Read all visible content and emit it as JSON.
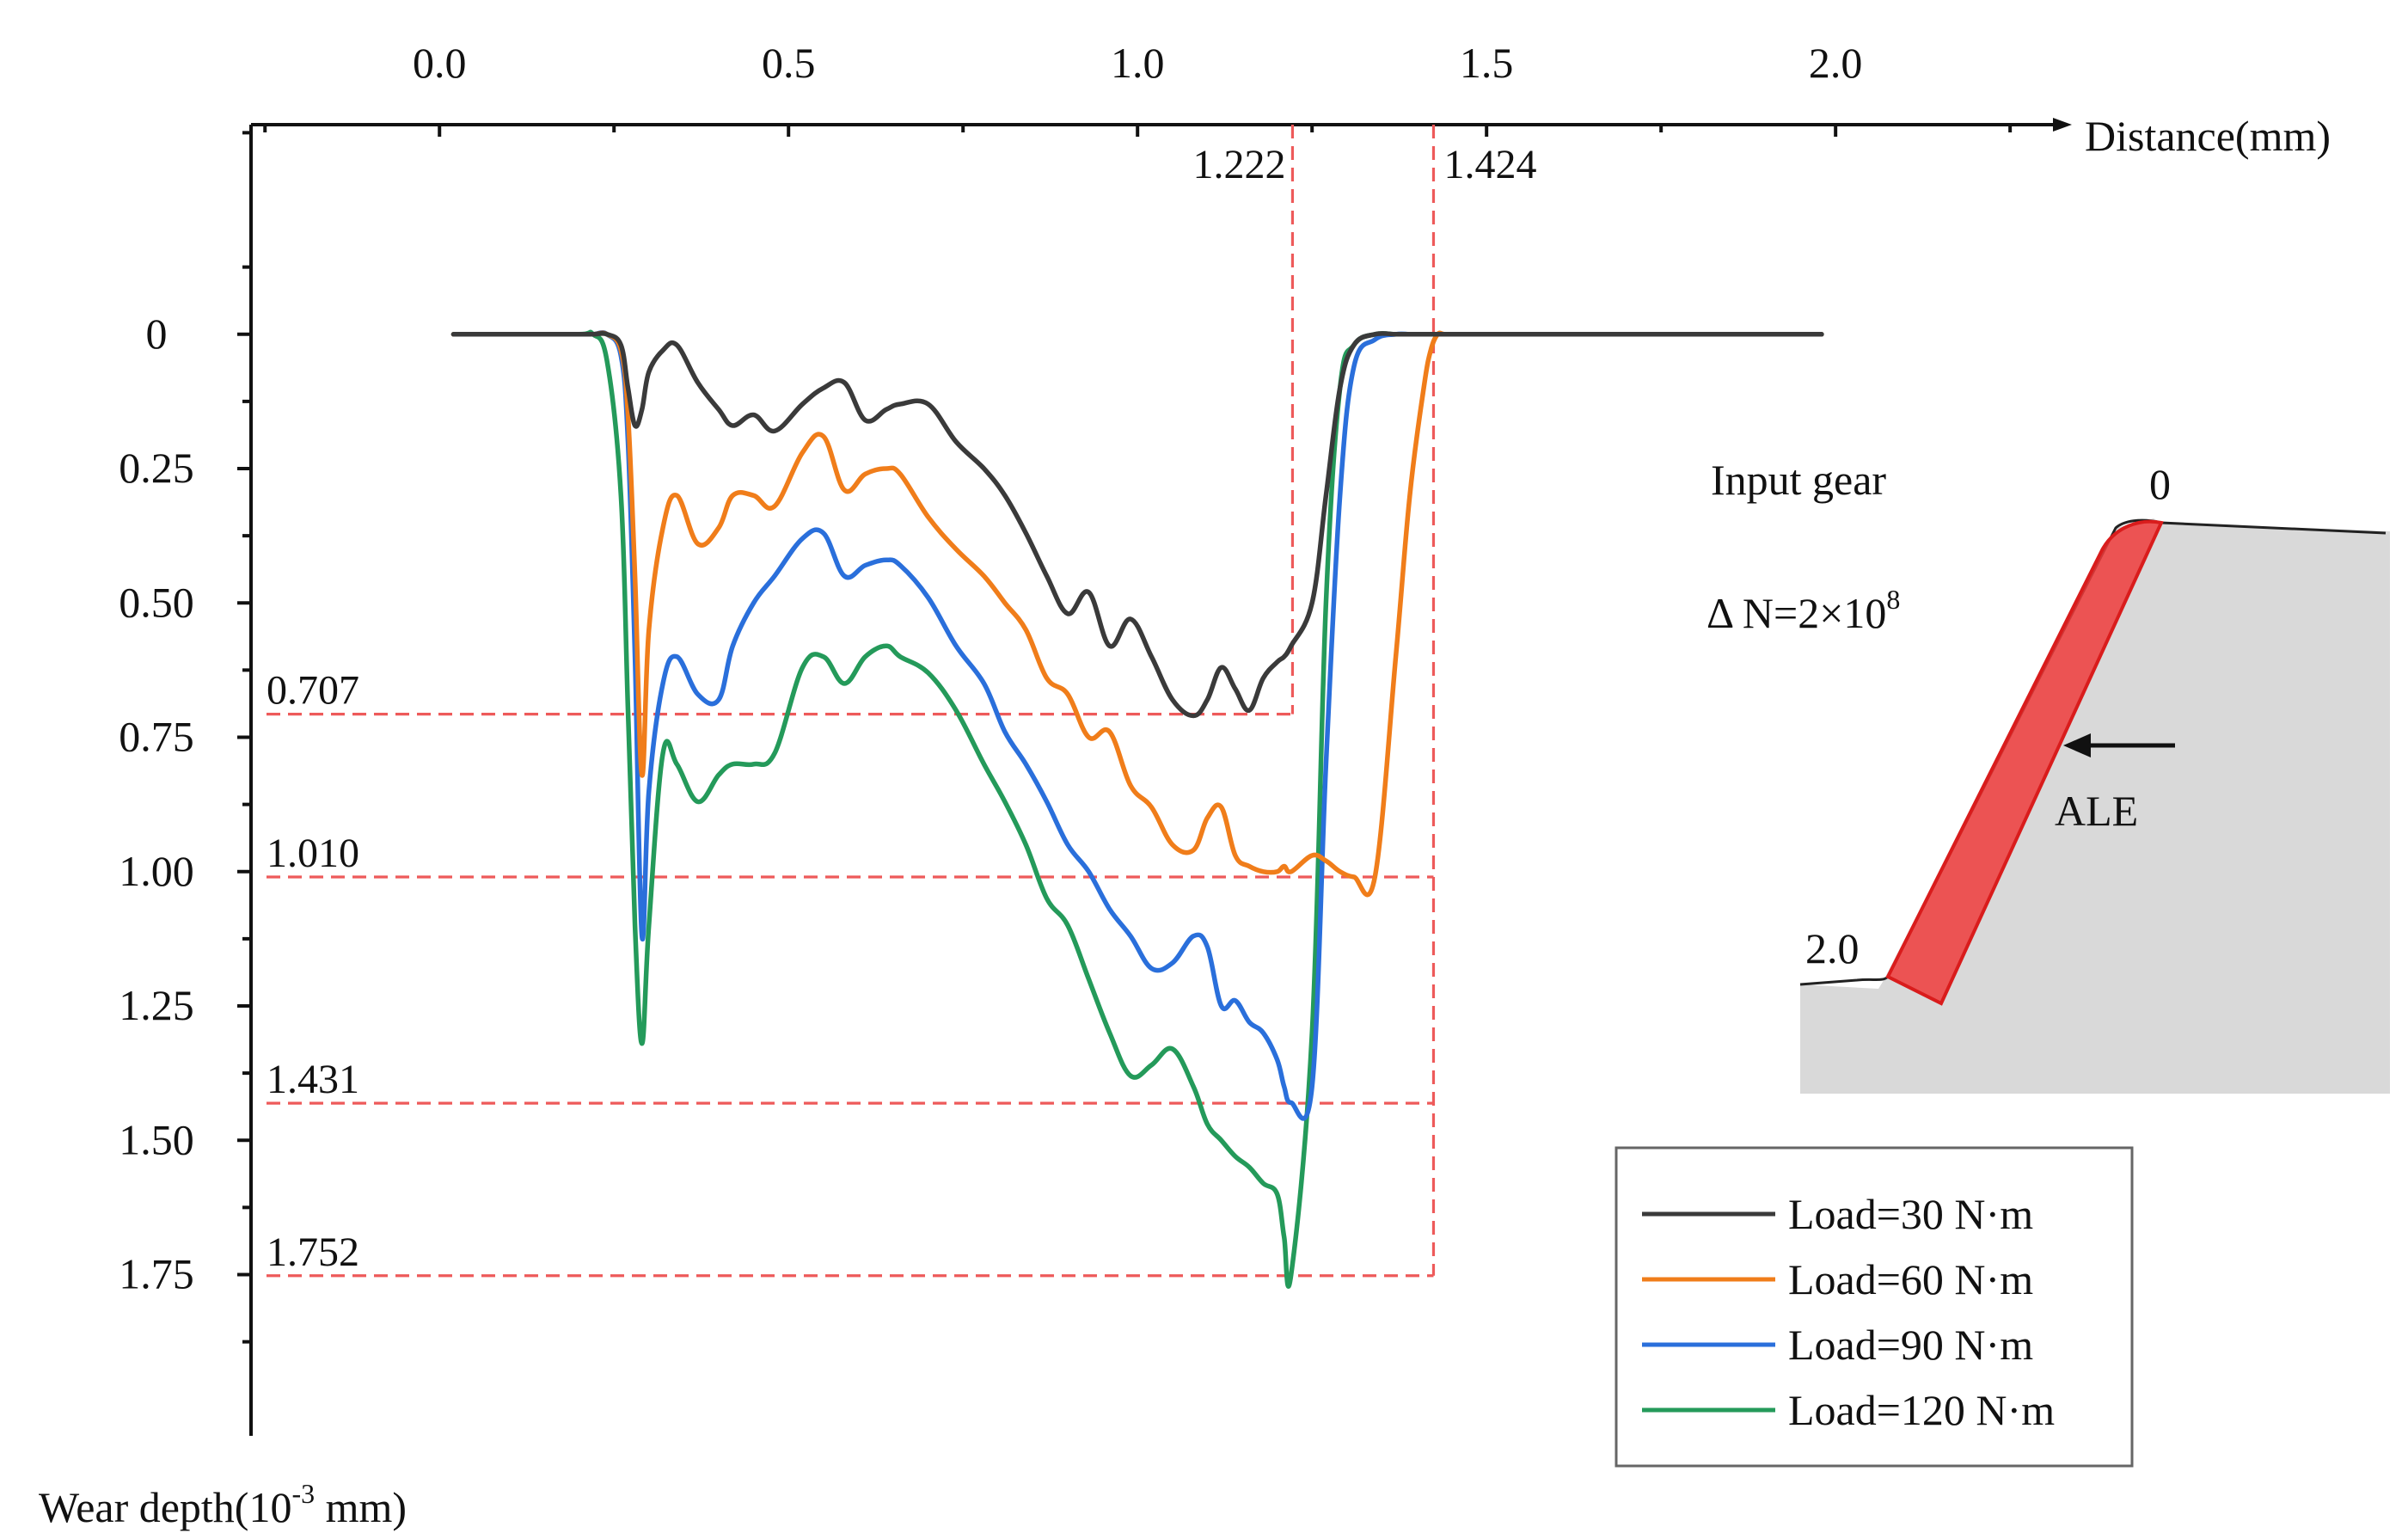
{
  "chart_data": {
    "type": "line",
    "title": "",
    "xlabel": "Distance(mm)",
    "ylabel_prefix": "Wear depth(10",
    "ylabel_exp": "-3",
    "ylabel_suffix": " mm)",
    "xlim": [
      -0.27,
      2.32
    ],
    "ylim": [
      -0.39,
      2.05
    ],
    "xticks": [
      0.0,
      0.5,
      1.0,
      1.5,
      2.0
    ],
    "xtick_labels": [
      "0.0",
      "0.5",
      "1.0",
      "1.5",
      "2.0"
    ],
    "yticks": [
      0,
      0.25,
      0.5,
      0.75,
      1.0,
      1.25,
      1.5,
      1.75
    ],
    "ytick_labels": [
      "0",
      "0.25",
      "0.50",
      "0.75",
      "1.00",
      "1.25",
      "1.50",
      "1.75"
    ],
    "x": [
      0.02,
      0.1,
      0.2,
      0.22,
      0.24,
      0.26,
      0.27,
      0.28,
      0.29,
      0.3,
      0.32,
      0.34,
      0.37,
      0.4,
      0.42,
      0.45,
      0.48,
      0.52,
      0.55,
      0.58,
      0.61,
      0.64,
      0.66,
      0.7,
      0.74,
      0.78,
      0.81,
      0.84,
      0.87,
      0.9,
      0.93,
      0.96,
      0.99,
      1.02,
      1.05,
      1.08,
      1.1,
      1.12,
      1.14,
      1.16,
      1.18,
      1.2,
      1.21,
      1.22,
      1.25,
      1.27,
      1.29,
      1.31,
      1.34,
      1.37,
      1.39,
      1.41,
      1.42,
      1.43,
      1.44,
      1.46,
      1.48,
      1.5,
      1.6,
      1.8,
      1.9,
      1.98
    ],
    "series": [
      {
        "name": "Load=30 N·m",
        "color": "#3a3a3a",
        "values": [
          0,
          0,
          0,
          0,
          0,
          0.02,
          0.1,
          0.17,
          0.14,
          0.07,
          0.03,
          0.02,
          0.09,
          0.14,
          0.17,
          0.15,
          0.18,
          0.13,
          0.1,
          0.09,
          0.16,
          0.14,
          0.13,
          0.13,
          0.2,
          0.25,
          0.3,
          0.37,
          0.45,
          0.52,
          0.48,
          0.58,
          0.53,
          0.6,
          0.68,
          0.71,
          0.68,
          0.62,
          0.66,
          0.7,
          0.64,
          0.61,
          0.6,
          0.58,
          0.5,
          0.3,
          0.1,
          0.02,
          0,
          0,
          0,
          0,
          0,
          0,
          0,
          0,
          0,
          0,
          0,
          0,
          0,
          0
        ]
      },
      {
        "name": "Load=60 N·m",
        "color": "#f07d1a",
        "values": [
          0,
          0,
          0,
          0,
          0,
          0.03,
          0.15,
          0.45,
          0.82,
          0.55,
          0.36,
          0.3,
          0.39,
          0.36,
          0.3,
          0.3,
          0.32,
          0.22,
          0.19,
          0.29,
          0.26,
          0.25,
          0.26,
          0.34,
          0.4,
          0.45,
          0.5,
          0.55,
          0.64,
          0.67,
          0.75,
          0.74,
          0.84,
          0.88,
          0.95,
          0.96,
          0.9,
          0.88,
          0.97,
          0.99,
          1.0,
          1.0,
          0.99,
          1.0,
          0.97,
          0.98,
          1.0,
          1.01,
          1.01,
          0.6,
          0.3,
          0.1,
          0.03,
          0,
          0,
          0,
          0,
          0,
          0,
          0,
          0,
          0
        ]
      },
      {
        "name": "Load=90 N·m",
        "color": "#2a6fdb",
        "values": [
          0,
          0,
          0,
          0,
          0,
          0.04,
          0.2,
          0.6,
          1.12,
          0.85,
          0.65,
          0.6,
          0.67,
          0.68,
          0.58,
          0.5,
          0.45,
          0.38,
          0.37,
          0.45,
          0.43,
          0.42,
          0.43,
          0.49,
          0.58,
          0.65,
          0.74,
          0.8,
          0.87,
          0.95,
          1.0,
          1.07,
          1.12,
          1.18,
          1.17,
          1.12,
          1.14,
          1.25,
          1.24,
          1.28,
          1.3,
          1.35,
          1.4,
          1.43,
          1.4,
          0.8,
          0.3,
          0.06,
          0.01,
          0,
          0,
          0,
          0,
          0,
          0,
          0,
          0,
          0,
          0,
          0,
          0,
          0
        ]
      },
      {
        "name": "Load=120 N·m",
        "color": "#249a5a",
        "values": [
          0,
          0,
          0,
          0,
          0.05,
          0.3,
          0.7,
          1.1,
          1.32,
          1.1,
          0.78,
          0.8,
          0.87,
          0.82,
          0.8,
          0.8,
          0.78,
          0.62,
          0.6,
          0.65,
          0.6,
          0.58,
          0.6,
          0.63,
          0.7,
          0.8,
          0.87,
          0.95,
          1.05,
          1.1,
          1.2,
          1.3,
          1.38,
          1.36,
          1.33,
          1.4,
          1.47,
          1.5,
          1.53,
          1.55,
          1.58,
          1.6,
          1.68,
          1.75,
          1.3,
          0.5,
          0.1,
          0.02,
          0,
          0,
          0,
          0,
          0,
          0,
          0,
          0,
          0,
          0,
          0,
          0,
          0,
          0
        ]
      }
    ],
    "annotations": {
      "vlines": [
        {
          "x": 1.222,
          "label": "1.222"
        },
        {
          "x": 1.424,
          "label": "1.424"
        }
      ],
      "hlines": [
        {
          "y": 0.707,
          "label": "0.707"
        },
        {
          "y": 1.01,
          "label": "1.010"
        },
        {
          "y": 1.431,
          "label": "1.431"
        },
        {
          "y": 1.752,
          "label": "1.752"
        }
      ]
    },
    "legend_placement": "bottom-right"
  },
  "inset": {
    "title": "Input gear",
    "delta_prefix": "Δ N=2×10",
    "delta_exp": "8",
    "label_start": "0",
    "label_end": "2.0",
    "arrow_label": "ALE",
    "surface_color": "#d9d9d9",
    "highlight_color": "#ee3b3b"
  }
}
